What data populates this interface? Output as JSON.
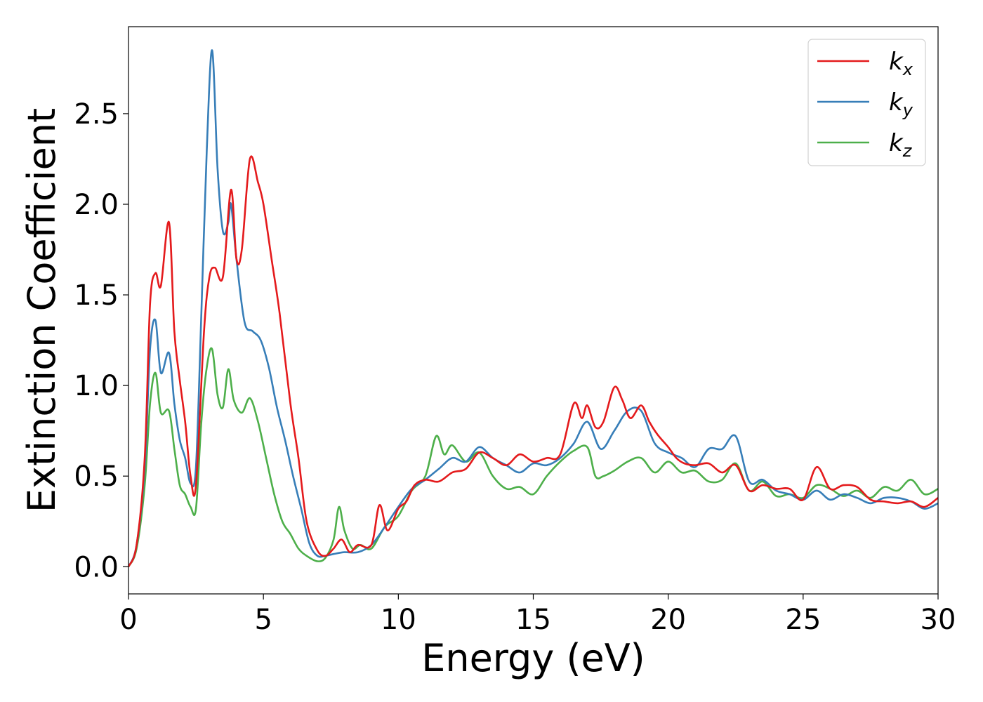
{
  "chart_data": {
    "type": "line",
    "title": "",
    "xlabel": "Energy (eV)",
    "ylabel": "Extinction Coefficient",
    "xlim": [
      0,
      30
    ],
    "ylim": [
      -0.15,
      2.98
    ],
    "xticks": [
      0,
      5,
      10,
      15,
      20,
      25,
      30
    ],
    "xtick_labels": [
      "0",
      "5",
      "10",
      "15",
      "20",
      "25",
      "30"
    ],
    "yticks": [
      0.0,
      0.5,
      1.0,
      1.5,
      2.0,
      2.5
    ],
    "ytick_labels": [
      "0.0",
      "0.5",
      "1.0",
      "1.5",
      "2.0",
      "2.5"
    ],
    "grid": false,
    "legend_position": "top-right",
    "series": [
      {
        "name": "k",
        "subscript": "x",
        "color": "#e41a1c",
        "x": [
          0,
          0.3,
          0.6,
          0.8,
          1.0,
          1.2,
          1.5,
          1.7,
          1.9,
          2.1,
          2.3,
          2.5,
          2.8,
          3.0,
          3.2,
          3.5,
          3.8,
          4.0,
          4.2,
          4.5,
          4.8,
          5.0,
          5.3,
          5.6,
          6.0,
          6.3,
          6.6,
          7.0,
          7.3,
          7.6,
          7.9,
          8.2,
          8.5,
          9.0,
          9.3,
          9.6,
          10.0,
          10.3,
          10.6,
          11.0,
          11.5,
          12.0,
          12.5,
          13.0,
          13.5,
          14.0,
          14.5,
          15.0,
          15.5,
          16.0,
          16.5,
          16.8,
          17.0,
          17.3,
          17.6,
          18.0,
          18.3,
          18.6,
          19.0,
          19.3,
          19.6,
          20.0,
          20.3,
          20.6,
          21.0,
          21.5,
          22.0,
          22.5,
          23.0,
          23.5,
          24.0,
          24.5,
          25.0,
          25.5,
          26.0,
          26.5,
          27.0,
          27.5,
          28.0,
          28.5,
          29.0,
          29.5,
          30.0
        ],
        "y": [
          0.0,
          0.12,
          0.6,
          1.45,
          1.62,
          1.55,
          1.9,
          1.3,
          1.03,
          0.8,
          0.5,
          0.45,
          1.3,
          1.6,
          1.65,
          1.6,
          2.08,
          1.7,
          1.75,
          2.25,
          2.12,
          2.0,
          1.7,
          1.4,
          0.9,
          0.6,
          0.25,
          0.09,
          0.06,
          0.1,
          0.15,
          0.08,
          0.12,
          0.12,
          0.34,
          0.2,
          0.32,
          0.36,
          0.45,
          0.48,
          0.47,
          0.52,
          0.54,
          0.63,
          0.6,
          0.56,
          0.62,
          0.58,
          0.6,
          0.62,
          0.9,
          0.82,
          0.89,
          0.77,
          0.8,
          0.99,
          0.92,
          0.82,
          0.89,
          0.8,
          0.73,
          0.66,
          0.6,
          0.57,
          0.56,
          0.57,
          0.52,
          0.56,
          0.42,
          0.45,
          0.43,
          0.43,
          0.37,
          0.55,
          0.43,
          0.45,
          0.44,
          0.37,
          0.36,
          0.35,
          0.36,
          0.33,
          0.38
        ]
      },
      {
        "name": "k",
        "subscript": "y",
        "color": "#377eb8",
        "x": [
          0,
          0.3,
          0.6,
          0.8,
          1.0,
          1.2,
          1.5,
          1.7,
          1.9,
          2.1,
          2.3,
          2.5,
          2.7,
          2.9,
          3.1,
          3.3,
          3.5,
          3.7,
          3.8,
          4.0,
          4.3,
          4.6,
          4.9,
          5.2,
          5.5,
          5.8,
          6.1,
          6.4,
          6.7,
          7.0,
          7.3,
          7.6,
          8.0,
          8.5,
          9.0,
          9.5,
          10.0,
          10.5,
          11.0,
          11.5,
          12.0,
          12.5,
          13.0,
          13.5,
          14.0,
          14.5,
          15.0,
          15.5,
          16.0,
          16.5,
          17.0,
          17.5,
          18.0,
          18.5,
          19.0,
          19.5,
          20.0,
          20.5,
          21.0,
          21.5,
          22.0,
          22.5,
          23.0,
          23.5,
          24.0,
          24.5,
          25.0,
          25.5,
          26.0,
          26.5,
          27.0,
          27.5,
          28.0,
          28.5,
          29.0,
          29.5,
          30.0
        ],
        "y": [
          0.0,
          0.12,
          0.55,
          1.2,
          1.36,
          1.07,
          1.18,
          0.9,
          0.7,
          0.6,
          0.46,
          0.55,
          1.4,
          2.3,
          2.85,
          2.2,
          1.85,
          1.9,
          2.0,
          1.7,
          1.35,
          1.3,
          1.25,
          1.1,
          0.88,
          0.7,
          0.5,
          0.32,
          0.13,
          0.06,
          0.06,
          0.07,
          0.08,
          0.08,
          0.12,
          0.22,
          0.33,
          0.43,
          0.48,
          0.54,
          0.6,
          0.58,
          0.66,
          0.6,
          0.56,
          0.52,
          0.57,
          0.56,
          0.6,
          0.68,
          0.8,
          0.65,
          0.75,
          0.86,
          0.86,
          0.68,
          0.63,
          0.6,
          0.55,
          0.65,
          0.65,
          0.72,
          0.47,
          0.48,
          0.42,
          0.4,
          0.37,
          0.42,
          0.37,
          0.4,
          0.38,
          0.35,
          0.38,
          0.38,
          0.36,
          0.32,
          0.35
        ]
      },
      {
        "name": "k",
        "subscript": "z",
        "color": "#4daf4a",
        "x": [
          0,
          0.3,
          0.6,
          0.8,
          1.0,
          1.2,
          1.5,
          1.7,
          1.9,
          2.1,
          2.3,
          2.5,
          2.7,
          2.9,
          3.1,
          3.3,
          3.5,
          3.7,
          3.9,
          4.2,
          4.5,
          4.8,
          5.1,
          5.4,
          5.7,
          6.0,
          6.3,
          6.6,
          7.0,
          7.3,
          7.6,
          7.8,
          8.0,
          8.3,
          8.6,
          9.0,
          9.5,
          10.0,
          10.5,
          11.0,
          11.4,
          11.7,
          12.0,
          12.5,
          13.0,
          13.5,
          14.0,
          14.5,
          15.0,
          15.5,
          16.0,
          16.5,
          17.0,
          17.3,
          17.6,
          18.0,
          18.5,
          19.0,
          19.5,
          20.0,
          20.5,
          21.0,
          21.5,
          22.0,
          22.5,
          23.0,
          23.5,
          24.0,
          24.5,
          25.0,
          25.5,
          26.0,
          26.5,
          27.0,
          27.5,
          28.0,
          28.5,
          29.0,
          29.5,
          30.0
        ],
        "y": [
          0.0,
          0.1,
          0.45,
          0.9,
          1.07,
          0.85,
          0.86,
          0.65,
          0.45,
          0.4,
          0.33,
          0.32,
          0.8,
          1.1,
          1.2,
          0.95,
          0.88,
          1.09,
          0.92,
          0.85,
          0.93,
          0.8,
          0.6,
          0.4,
          0.25,
          0.18,
          0.1,
          0.06,
          0.03,
          0.05,
          0.15,
          0.33,
          0.2,
          0.1,
          0.12,
          0.1,
          0.22,
          0.28,
          0.42,
          0.5,
          0.72,
          0.62,
          0.67,
          0.58,
          0.63,
          0.5,
          0.43,
          0.44,
          0.4,
          0.5,
          0.58,
          0.64,
          0.66,
          0.5,
          0.5,
          0.53,
          0.58,
          0.6,
          0.52,
          0.58,
          0.52,
          0.53,
          0.47,
          0.48,
          0.57,
          0.42,
          0.47,
          0.39,
          0.4,
          0.38,
          0.45,
          0.43,
          0.39,
          0.42,
          0.38,
          0.44,
          0.42,
          0.48,
          0.4,
          0.43
        ]
      }
    ]
  }
}
